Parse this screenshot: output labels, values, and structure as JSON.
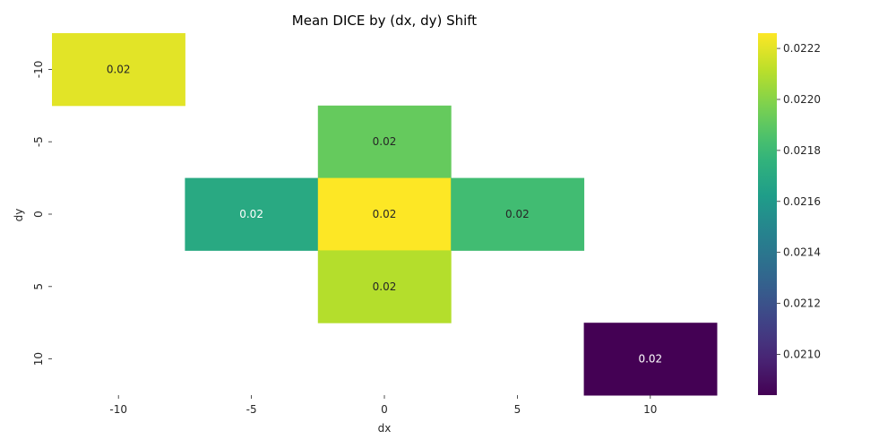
{
  "chart_data": {
    "type": "heatmap",
    "title": "Mean DICE by (dx, dy) Shift",
    "xlabel": "dx",
    "ylabel": "dy",
    "x_categories": [
      "-10",
      "-5",
      "0",
      "5",
      "10"
    ],
    "y_categories": [
      "-10",
      "-5",
      "0",
      "5",
      "10"
    ],
    "cells": [
      {
        "dx": "-10",
        "dy": "-10",
        "value": 0.0222,
        "label": "0.02"
      },
      {
        "dx": "0",
        "dy": "-5",
        "value": 0.02192,
        "label": "0.02"
      },
      {
        "dx": "-5",
        "dy": "0",
        "value": 0.0217,
        "label": "0.02"
      },
      {
        "dx": "0",
        "dy": "0",
        "value": 0.02226,
        "label": "0.02"
      },
      {
        "dx": "5",
        "dy": "0",
        "value": 0.02182,
        "label": "0.02"
      },
      {
        "dx": "0",
        "dy": "5",
        "value": 0.0221,
        "label": "0.02"
      },
      {
        "dx": "10",
        "dy": "10",
        "value": 0.02084,
        "label": "0.02"
      }
    ],
    "colormap": "viridis",
    "vmin": 0.02084,
    "vmax": 0.02226,
    "colorbar_ticks": [
      "0.0210",
      "0.0212",
      "0.0214",
      "0.0216",
      "0.0218",
      "0.0220",
      "0.0222"
    ],
    "grid": false,
    "legend": "colorbar-right"
  }
}
